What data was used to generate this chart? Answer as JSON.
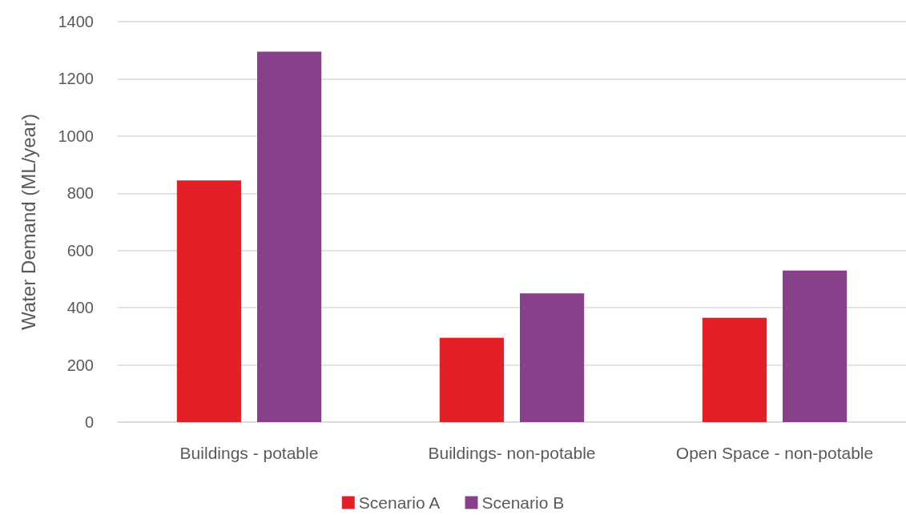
{
  "chart_data": {
    "type": "bar",
    "ylabel": "Water Demand (ML/year)",
    "categories": [
      "Buildings - potable",
      "Buildings- non-potable",
      "Open Space - non-potable"
    ],
    "series": [
      {
        "name": "Scenario A",
        "color": "#e41f28",
        "values": [
          845,
          295,
          365
        ]
      },
      {
        "name": "Scenario B",
        "color": "#87418a",
        "values": [
          1295,
          450,
          530
        ]
      }
    ],
    "ylim": [
      0,
      1400
    ],
    "yticks": [
      0,
      200,
      400,
      600,
      800,
      1000,
      1200,
      1400
    ],
    "grid": "y",
    "legend": "bottom"
  }
}
